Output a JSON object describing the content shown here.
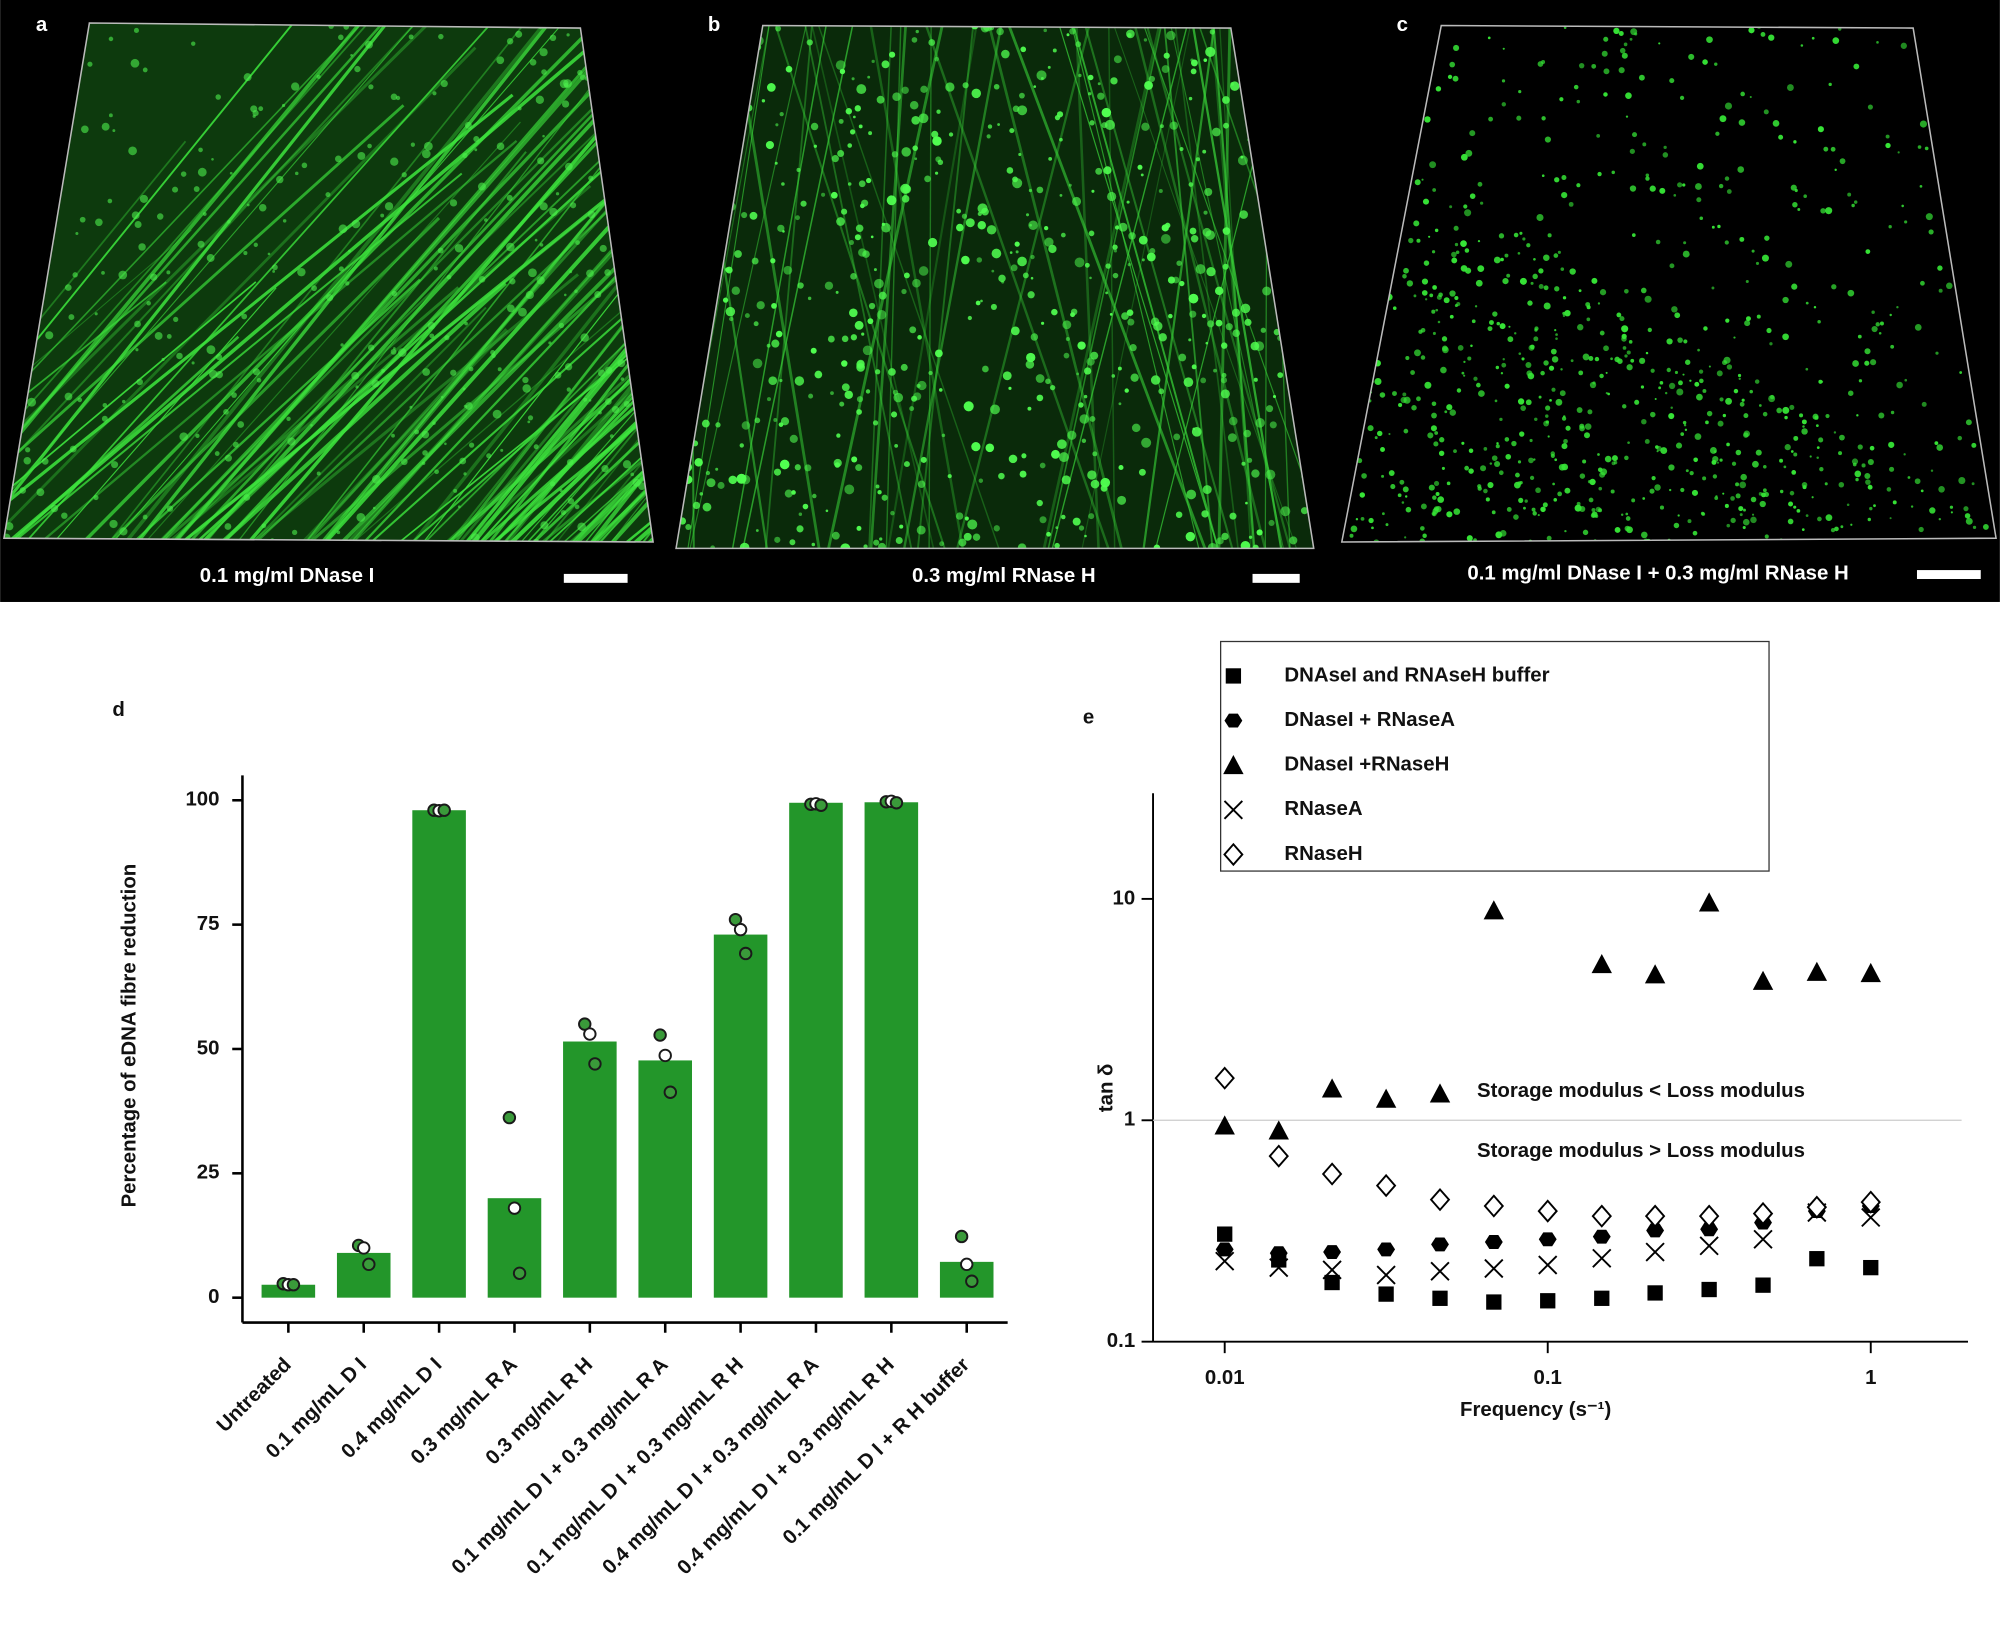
{
  "panels": [
    {
      "label": "a",
      "caption": "0.1 mg/ml DNase I"
    },
    {
      "label": "b",
      "caption": "0.3 mg/ml RNase H"
    },
    {
      "label": "c",
      "caption": "0.1 mg/ml DNase I + 0.3 mg/ml RNase H"
    }
  ],
  "chart_data": [
    {
      "type": "bar",
      "label": "d",
      "ylabel": "Percentage of eDNA fibre reduction",
      "categories": [
        "Untreated",
        "0.1 mg/mL D I",
        "0.4 mg/mL D I",
        "0.3 mg/mL R A",
        "0.3 mg/mL R H",
        "0.1 mg/mL D I + 0.3 mg/mL R A",
        "0.1 mg/mL D I + 0.3 mg/mL R H",
        "0.4 mg/mL D I + 0.3 mg/mL R A",
        "0.4 mg/mL D I + 0.3 mg/mL R H",
        "0.1 mg/mL D I + R H buffer"
      ],
      "values": [
        2.6,
        9,
        98,
        20,
        51.5,
        47.7,
        73,
        99.5,
        99.6,
        7.2
      ],
      "points": [
        [
          2.8,
          2.6,
          2.6
        ],
        [
          10.5,
          10,
          6.7
        ],
        [
          98,
          97.9,
          98
        ],
        [
          36.2,
          18,
          4.9
        ],
        [
          55,
          53,
          47
        ],
        [
          52.8,
          48.7,
          41.3
        ],
        [
          76,
          74,
          69.2
        ],
        [
          99.2,
          99.3,
          99
        ],
        [
          99.7,
          99.8,
          99.5
        ],
        [
          12.3,
          6.7,
          3.3
        ]
      ],
      "color": "#23962a",
      "point_color": "#3a9a3a",
      "ylim": [
        -5,
        105
      ],
      "yticks": [
        0,
        25,
        50,
        75,
        100
      ]
    },
    {
      "type": "scatter",
      "label": "e",
      "xlabel": "Frequency (s⁻¹)",
      "ylabel": "tan δ",
      "x": [
        0.01,
        0.0147,
        0.0215,
        0.0316,
        0.0464,
        0.0681,
        0.1,
        0.147,
        0.215,
        0.316,
        0.464,
        0.681,
        1
      ],
      "series": [
        {
          "name": "DNAseI and RNAseH buffer",
          "marker": "square",
          "color": "#000000",
          "values": [
            0.306,
            0.234,
            0.185,
            0.164,
            0.157,
            0.151,
            0.153,
            0.157,
            0.166,
            0.172,
            0.18,
            0.237,
            0.216
          ]
        },
        {
          "name": "DNaseI + RNaseA",
          "marker": "hexagon",
          "color": "#000000",
          "values": [
            0.261,
            0.251,
            0.254,
            0.261,
            0.275,
            0.282,
            0.29,
            0.298,
            0.318,
            0.322,
            0.345,
            0.389,
            0.41
          ]
        },
        {
          "name": "DNaseI +RNaseH",
          "marker": "triangle",
          "color": "#000000",
          "values": [
            0.947,
            0.899,
            1.39,
            1.25,
            1.32,
            8.87,
            null,
            5.07,
            4.56,
            9.62,
            4.26,
            4.68,
            4.62
          ]
        },
        {
          "name": "RNaseA",
          "marker": "x",
          "color": "#000000",
          "values": [
            0.231,
            0.216,
            0.211,
            0.2,
            0.208,
            0.214,
            0.222,
            0.238,
            0.254,
            0.271,
            0.29,
            0.383,
            0.364
          ]
        },
        {
          "name": "RNaseH",
          "marker": "diamond",
          "color": "#000000",
          "values": [
            1.55,
            0.689,
            0.572,
            0.507,
            0.438,
            0.41,
            0.389,
            0.369,
            0.369,
            0.369,
            0.379,
            0.405,
            0.427
          ]
        }
      ],
      "xlim": [
        0.006,
        2
      ],
      "ylim": [
        0.1,
        30
      ],
      "xticks": [
        0.01,
        0.1,
        1
      ],
      "yticks": [
        0.1,
        1,
        10
      ],
      "log_x": true,
      "log_y": true,
      "legend": "top",
      "reference_line": 1,
      "annotations": [
        "Storage modulus < Loss modulus",
        "Storage modulus > Loss modulus"
      ]
    }
  ]
}
